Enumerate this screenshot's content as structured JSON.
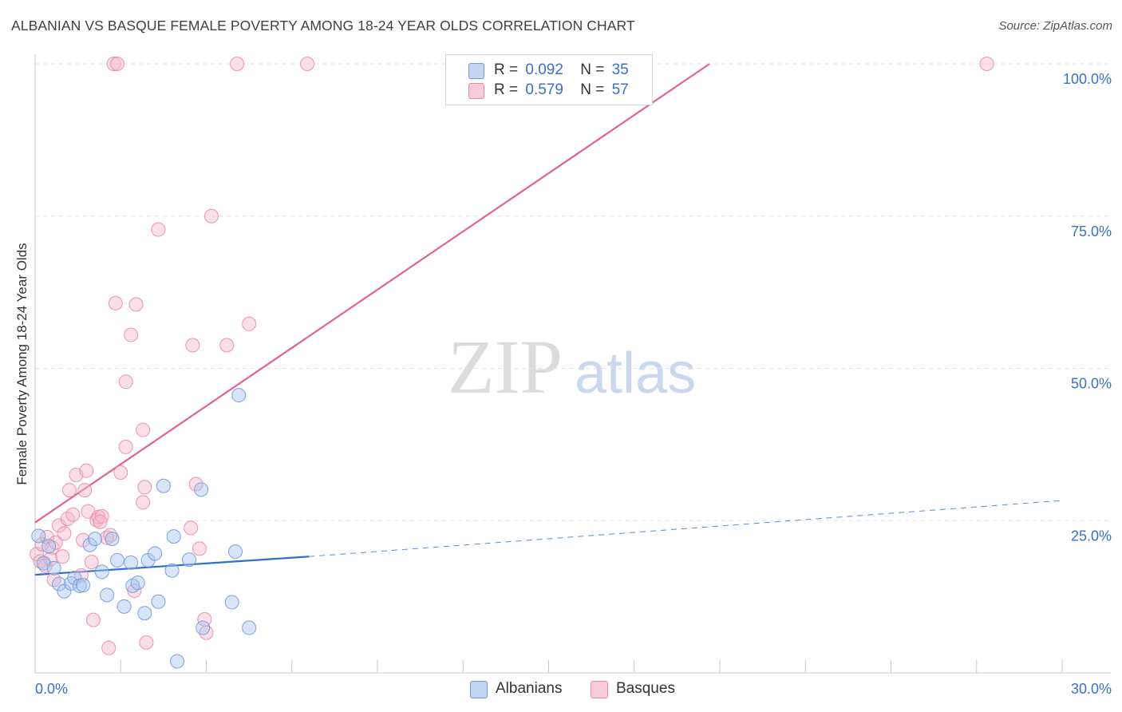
{
  "header": {
    "title": "ALBANIAN VS BASQUE FEMALE POVERTY AMONG 18-24 YEAR OLDS CORRELATION CHART",
    "source": "Source: ZipAtlas.com"
  },
  "watermark": {
    "zip": "ZIP",
    "atlas": "atlas"
  },
  "legend": {
    "albanians": {
      "r_label": "R =",
      "r_value": "0.092",
      "n_label": "N =",
      "n_value": "35"
    },
    "basques": {
      "r_label": "R =",
      "r_value": "0.579",
      "n_label": "N =",
      "n_value": "57"
    }
  },
  "bottom_legend": {
    "albanians": "Albanians",
    "basques": "Basques"
  },
  "colors": {
    "albanians_fill": "#a9c4ee",
    "albanians_stroke": "#6f9ad8",
    "albanians_line": "#2f6fcd",
    "basques_fill": "#f6b8cb",
    "basques_stroke": "#e88aa7",
    "basques_line": "#e06490",
    "tick_label": "#3a70c7",
    "grid": "#e3e3e3"
  },
  "chart_data": {
    "type": "scatter",
    "title": "ALBANIAN VS BASQUE FEMALE POVERTY AMONG 18-24 YEAR OLDS CORRELATION CHART",
    "xlabel": "",
    "ylabel": "Female Poverty Among 18-24 Year Olds",
    "xlim": [
      0,
      30
    ],
    "ylim": [
      0,
      101
    ],
    "x_tick_labels": [
      "0.0%",
      "30.0%"
    ],
    "y_ticks": [
      25,
      50,
      75,
      100
    ],
    "y_tick_labels": [
      "25.0%",
      "50.0%",
      "75.0%",
      "100.0%"
    ],
    "grid": true,
    "legend_position": "top-center",
    "series": [
      {
        "name": "Albanians",
        "r": 0.092,
        "n": 35,
        "trend": {
          "x0": 0,
          "y0": 16.1,
          "x1": 8.0,
          "y1": 19.1,
          "dash_x1": 30.0,
          "dash_y1": 28.3
        },
        "points": [
          [
            0.1,
            22.5
          ],
          [
            0.25,
            18.0
          ],
          [
            0.4,
            20.8
          ],
          [
            0.55,
            17.2
          ],
          [
            0.7,
            14.6
          ],
          [
            0.85,
            13.4
          ],
          [
            1.05,
            14.7
          ],
          [
            1.15,
            15.6
          ],
          [
            1.3,
            14.3
          ],
          [
            1.4,
            14.4
          ],
          [
            1.6,
            21.0
          ],
          [
            1.75,
            22.0
          ],
          [
            1.95,
            16.6
          ],
          [
            2.1,
            12.8
          ],
          [
            2.25,
            22.0
          ],
          [
            2.4,
            18.5
          ],
          [
            2.6,
            10.9
          ],
          [
            2.8,
            18.1
          ],
          [
            2.85,
            14.3
          ],
          [
            3.0,
            14.8
          ],
          [
            3.2,
            9.8
          ],
          [
            3.3,
            18.5
          ],
          [
            3.5,
            19.6
          ],
          [
            3.6,
            11.7
          ],
          [
            3.75,
            30.7
          ],
          [
            4.0,
            16.8
          ],
          [
            4.05,
            22.4
          ],
          [
            4.15,
            1.9
          ],
          [
            4.5,
            18.6
          ],
          [
            4.9,
            7.4
          ],
          [
            4.85,
            30.1
          ],
          [
            5.75,
            11.6
          ],
          [
            5.85,
            19.9
          ],
          [
            5.95,
            45.6
          ],
          [
            6.25,
            7.4
          ]
        ]
      },
      {
        "name": "Basques",
        "r": 0.579,
        "n": 57,
        "trend": {
          "x0": 0,
          "y0": 24.7,
          "x1": 19.7,
          "y1": 100.0
        },
        "points": [
          [
            0.05,
            19.5
          ],
          [
            0.15,
            18.3
          ],
          [
            0.2,
            21.1
          ],
          [
            0.3,
            17.6
          ],
          [
            0.35,
            22.3
          ],
          [
            0.45,
            18.7
          ],
          [
            0.5,
            20.6
          ],
          [
            0.55,
            15.3
          ],
          [
            0.6,
            21.4
          ],
          [
            0.7,
            24.2
          ],
          [
            0.8,
            19.1
          ],
          [
            0.85,
            22.9
          ],
          [
            0.95,
            25.3
          ],
          [
            1.0,
            30.0
          ],
          [
            1.1,
            26.0
          ],
          [
            1.2,
            32.5
          ],
          [
            1.35,
            16.0
          ],
          [
            1.4,
            21.8
          ],
          [
            1.45,
            30.0
          ],
          [
            1.5,
            33.2
          ],
          [
            1.55,
            26.5
          ],
          [
            1.65,
            18.2
          ],
          [
            1.7,
            8.7
          ],
          [
            1.8,
            25.1
          ],
          [
            1.85,
            25.6
          ],
          [
            1.95,
            25.7
          ],
          [
            2.1,
            22.2
          ],
          [
            2.15,
            4.1
          ],
          [
            2.2,
            22.6
          ],
          [
            2.3,
            100.0
          ],
          [
            2.35,
            60.7
          ],
          [
            2.4,
            100.0
          ],
          [
            2.5,
            32.9
          ],
          [
            2.65,
            47.8
          ],
          [
            2.65,
            37.1
          ],
          [
            2.8,
            55.5
          ],
          [
            2.9,
            13.5
          ],
          [
            2.95,
            60.5
          ],
          [
            3.15,
            39.9
          ],
          [
            3.2,
            30.5
          ],
          [
            3.25,
            5.0
          ],
          [
            3.6,
            72.8
          ],
          [
            4.55,
            23.8
          ],
          [
            4.6,
            53.8
          ],
          [
            4.7,
            31.0
          ],
          [
            4.8,
            20.4
          ],
          [
            4.95,
            8.8
          ],
          [
            5.0,
            6.6
          ],
          [
            5.15,
            75.0
          ],
          [
            5.6,
            53.8
          ],
          [
            5.9,
            100.0
          ],
          [
            6.25,
            57.3
          ],
          [
            7.95,
            100.0
          ],
          [
            14.2,
            100.0
          ],
          [
            27.8,
            100.0
          ],
          [
            3.15,
            28.0
          ],
          [
            1.9,
            24.8
          ]
        ]
      }
    ]
  }
}
